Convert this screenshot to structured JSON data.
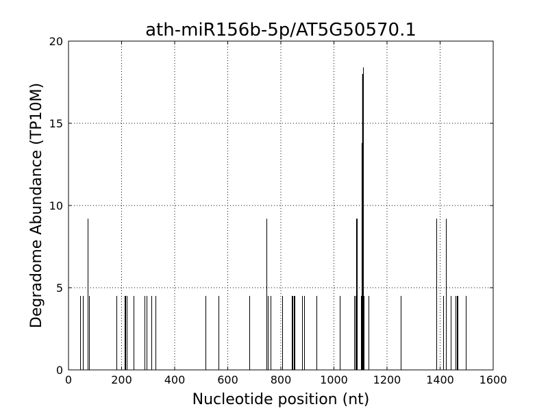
{
  "chart_data": {
    "type": "bar",
    "title": "ath-miR156b-5p/AT5G50570.1",
    "xlabel": "Nucleotide position (nt)",
    "ylabel": "Degradome Abundance (TP10M)",
    "xlim": [
      0,
      1600
    ],
    "ylim": [
      0,
      20
    ],
    "xticks": [
      0,
      200,
      400,
      600,
      800,
      1000,
      1200,
      1400,
      1600
    ],
    "yticks": [
      0,
      5,
      10,
      15,
      20
    ],
    "grid": true,
    "legend": "none",
    "bar_color": "#000000",
    "highlight_color": "#ff0000",
    "series": [
      {
        "values": [
          {
            "x": 45,
            "y": 4.5
          },
          {
            "x": 55,
            "y": 4.5
          },
          {
            "x": 72,
            "y": 9.2
          },
          {
            "x": 78,
            "y": 4.5
          },
          {
            "x": 180,
            "y": 4.5
          },
          {
            "x": 211,
            "y": 4.5
          },
          {
            "x": 215,
            "y": 4.5
          },
          {
            "x": 219,
            "y": 4.5
          },
          {
            "x": 244,
            "y": 4.5
          },
          {
            "x": 287,
            "y": 4.5
          },
          {
            "x": 294,
            "y": 4.5
          },
          {
            "x": 313,
            "y": 4.5
          },
          {
            "x": 327,
            "y": 4.5
          },
          {
            "x": 515,
            "y": 4.5
          },
          {
            "x": 566,
            "y": 4.5
          },
          {
            "x": 680,
            "y": 4.5
          },
          {
            "x": 745,
            "y": 9.2
          },
          {
            "x": 750,
            "y": 4.5
          },
          {
            "x": 760,
            "y": 4.5
          },
          {
            "x": 805,
            "y": 4.5
          },
          {
            "x": 840,
            "y": 4.5
          },
          {
            "x": 844,
            "y": 4.5
          },
          {
            "x": 848,
            "y": 4.5
          },
          {
            "x": 852,
            "y": 4.5
          },
          {
            "x": 879,
            "y": 4.5
          },
          {
            "x": 889,
            "y": 4.5
          },
          {
            "x": 935,
            "y": 4.5
          },
          {
            "x": 1021,
            "y": 4.5
          },
          {
            "x": 1075,
            "y": 4.5
          },
          {
            "x": 1080,
            "y": 4.5
          },
          {
            "x": 1083,
            "y": 9.2
          },
          {
            "x": 1087,
            "y": 9.2
          },
          {
            "x": 1101,
            "y": 4.5
          },
          {
            "x": 1105,
            "y": 13.8
          },
          {
            "x": 1110,
            "y": 18.4
          },
          {
            "x": 1113,
            "y": 4.5
          },
          {
            "x": 1131,
            "y": 4.5
          },
          {
            "x": 1251,
            "y": 4.5
          },
          {
            "x": 1385,
            "y": 9.2
          },
          {
            "x": 1412,
            "y": 4.5
          },
          {
            "x": 1422,
            "y": 9.2
          },
          {
            "x": 1441,
            "y": 4.5
          },
          {
            "x": 1458,
            "y": 4.5
          },
          {
            "x": 1463,
            "y": 4.5
          },
          {
            "x": 1467,
            "y": 4.5
          },
          {
            "x": 1497,
            "y": 4.5
          }
        ]
      }
    ],
    "highlight": {
      "x": 1109,
      "y": 18.0
    }
  }
}
